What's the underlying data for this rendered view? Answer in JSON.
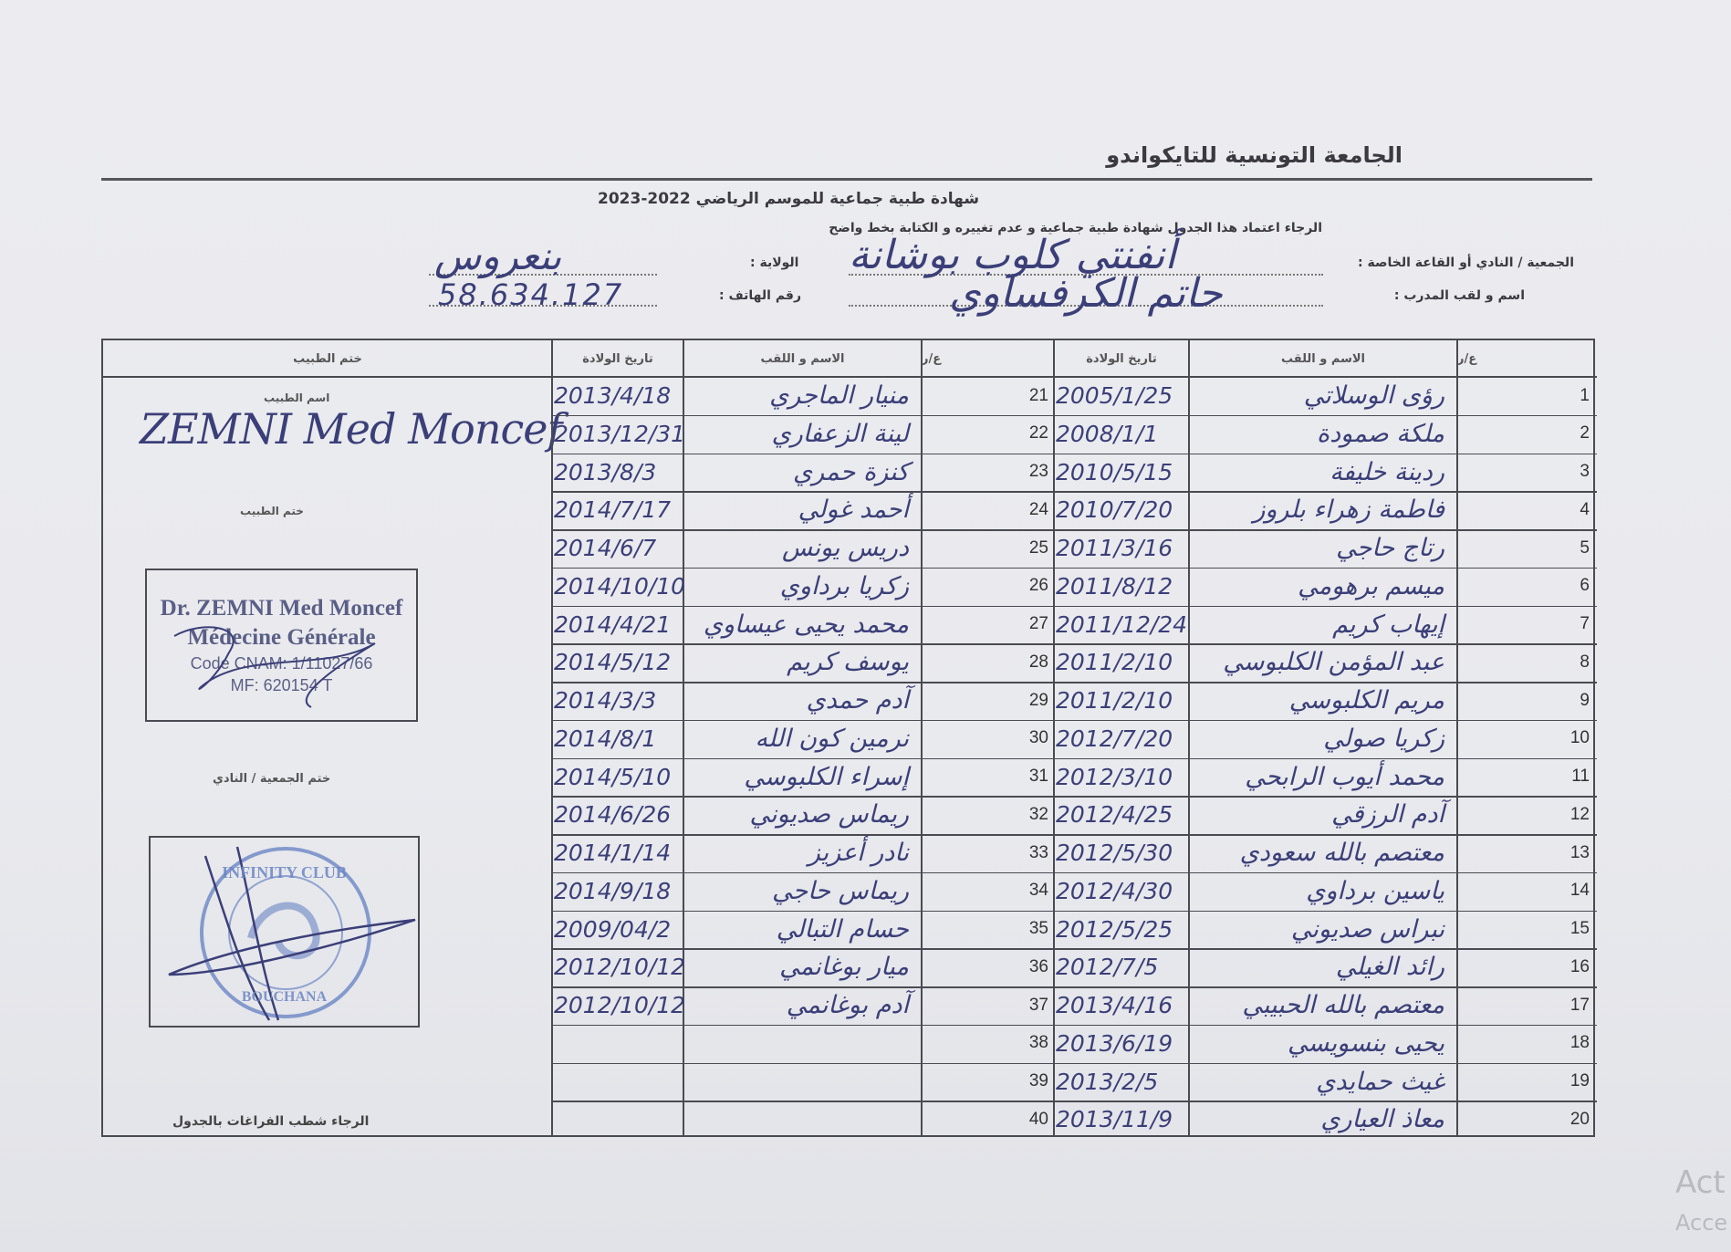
{
  "header": {
    "federation": "الجامعة التونسية للتايكواندو",
    "subtitle": "شهادة طبية جماعية للموسم الرياضي 2022-2023",
    "instruction": "الرجاء اعتماد هذا الجدول شهادة طبية جماعية و عدم تغييره و الكتابة بخط واضح"
  },
  "form": {
    "club_label": "الجمعية / النادي أو القاعة الخاصة :",
    "club_value": "أنفنتي كلوب بوشانة",
    "state_label": "الولاية :",
    "state_value": "بنعروس",
    "coach_label": "اسم و لقب المدرب :",
    "coach_value": "حاتم الكرفساوي",
    "phone_label": "رقم الهاتف :",
    "phone_value": "58.634.127"
  },
  "table": {
    "headers": {
      "number": "ع/ر",
      "name": "الاسم و اللقب",
      "birth": "تاريخ الولادة",
      "doctor": "ختم الطبيب"
    },
    "rows": [
      {
        "n": "1",
        "name": "رؤى الوسلاتي",
        "date": "2005/1/25"
      },
      {
        "n": "2",
        "name": "ملكة صمودة",
        "date": "2008/1/1"
      },
      {
        "n": "3",
        "name": "ردينة خليفة",
        "date": "2010/5/15"
      },
      {
        "n": "4",
        "name": "فاطمة زهراء بلروز",
        "date": "2010/7/20"
      },
      {
        "n": "5",
        "name": "رتاج حاجي",
        "date": "2011/3/16"
      },
      {
        "n": "6",
        "name": "ميسم برهومي",
        "date": "2011/8/12"
      },
      {
        "n": "7",
        "name": "إيهاب كريم",
        "date": "2011/12/24"
      },
      {
        "n": "8",
        "name": "عبد المؤمن الكلبوسي",
        "date": "2011/2/10"
      },
      {
        "n": "9",
        "name": "مريم الكلبوسي",
        "date": "2011/2/10"
      },
      {
        "n": "10",
        "name": "زكريا صولي",
        "date": "2012/7/20"
      },
      {
        "n": "11",
        "name": "محمد أيوب الرابحي",
        "date": "2012/3/10"
      },
      {
        "n": "12",
        "name": "آدم الرزقي",
        "date": "2012/4/25"
      },
      {
        "n": "13",
        "name": "معتصم بالله سعودي",
        "date": "2012/5/30"
      },
      {
        "n": "14",
        "name": "ياسين برداوي",
        "date": "2012/4/30"
      },
      {
        "n": "15",
        "name": "نبراس صديوني",
        "date": "2012/5/25"
      },
      {
        "n": "16",
        "name": "رائد الغيلي",
        "date": "2012/7/5"
      },
      {
        "n": "17",
        "name": "معتصم بالله الحبيبي",
        "date": "2013/4/16"
      },
      {
        "n": "18",
        "name": "يحيى بنسويسي",
        "date": "2013/6/19"
      },
      {
        "n": "19",
        "name": "غيث حمايدي",
        "date": "2013/2/5"
      },
      {
        "n": "20",
        "name": "معاذ العياري",
        "date": "2013/11/9"
      },
      {
        "n": "21",
        "name": "منيار الماجري",
        "date": "2013/4/18"
      },
      {
        "n": "22",
        "name": "لينة الزعفاري",
        "date": "2013/12/31"
      },
      {
        "n": "23",
        "name": "كنزة حمري",
        "date": "2013/8/3"
      },
      {
        "n": "24",
        "name": "أحمد غولي",
        "date": "2014/7/17"
      },
      {
        "n": "25",
        "name": "دريس يونس",
        "date": "2014/6/7"
      },
      {
        "n": "26",
        "name": "زكريا برداوي",
        "date": "2014/10/10"
      },
      {
        "n": "27",
        "name": "محمد يحيى عيساوي",
        "date": "2014/4/21"
      },
      {
        "n": "28",
        "name": "يوسف كريم",
        "date": "2014/5/12"
      },
      {
        "n": "29",
        "name": "آدم حمدي",
        "date": "2014/3/3"
      },
      {
        "n": "30",
        "name": "نرمين كون الله",
        "date": "2014/8/1"
      },
      {
        "n": "31",
        "name": "إسراء الكلبوسي",
        "date": "2014/5/10"
      },
      {
        "n": "32",
        "name": "ريماس صديوني",
        "date": "2014/6/26"
      },
      {
        "n": "33",
        "name": "نادر أعزيز",
        "date": "2014/1/14"
      },
      {
        "n": "34",
        "name": "ريماس حاجي",
        "date": "2014/9/18"
      },
      {
        "n": "35",
        "name": "حسام التبالي",
        "date": "2009/04/2"
      },
      {
        "n": "36",
        "name": "ميار بوغانمي",
        "date": "2012/10/12"
      },
      {
        "n": "37",
        "name": "آدم بوغانمي",
        "date": "2012/10/12"
      },
      {
        "n": "38",
        "name": "",
        "date": ""
      },
      {
        "n": "39",
        "name": "",
        "date": ""
      },
      {
        "n": "40",
        "name": "",
        "date": ""
      }
    ]
  },
  "doctor": {
    "name_label": "اسم الطبيب",
    "name_value": "ZEMNI Med Moncef",
    "stamp_label": "ختم الطبيب",
    "stamp_lines": [
      "Dr. ZEMNI Med Moncef",
      "Médecine Générale",
      "Code CNAM: 1/11027/66",
      "MF: 620154 T"
    ],
    "club_stamp_label": "ختم الجمعية / النادي",
    "club_stamp_top": "INFINITY CLUB",
    "club_stamp_bottom": "BOUCHANA",
    "footer_note": "الرجاء شطب الفراغات بالجدول"
  },
  "overlay": {
    "line1": "Act",
    "line2": "Acce"
  },
  "colors": {
    "ink": "#3b3f78",
    "print": "#3a3a40",
    "stamp_blue": "#6b86c4",
    "paper": "#ececf0"
  }
}
